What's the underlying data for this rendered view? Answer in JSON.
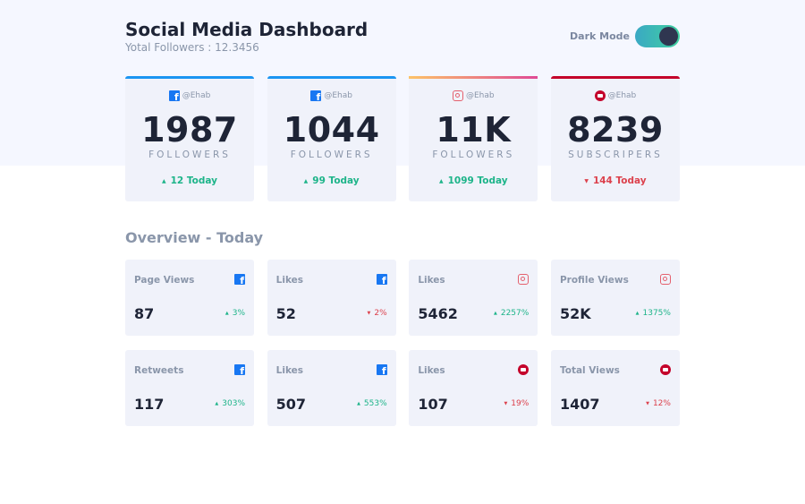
{
  "header": {
    "title": "Social Media Dashboard",
    "subtitle": "Yotal Followers : 12.3456",
    "dark_mode_label": "Dark Mode",
    "dark_mode_on": true
  },
  "cards": [
    {
      "platform": "facebook",
      "icon": "facebook-icon",
      "handle": "@Ehab",
      "count": "1987",
      "label": "FOLLOWERS",
      "delta": "12 Today",
      "trend": "up"
    },
    {
      "platform": "facebook",
      "icon": "facebook-icon",
      "handle": "@Ehab",
      "count": "1044",
      "label": "FOLLOWERS",
      "delta": "99 Today",
      "trend": "up"
    },
    {
      "platform": "instagram",
      "icon": "instagram-icon",
      "handle": "@Ehab",
      "count": "11K",
      "label": "FOLLOWERS",
      "delta": "1099 Today",
      "trend": "up"
    },
    {
      "platform": "youtube",
      "icon": "youtube-icon",
      "handle": "@Ehab",
      "count": "8239",
      "label": "SUBSCRIPERS",
      "delta": "144 Today",
      "trend": "down"
    }
  ],
  "overview": {
    "title": "Overview - Today",
    "items": [
      {
        "label": "Page Views",
        "icon": "facebook-icon",
        "value": "87",
        "delta": "3%",
        "trend": "up"
      },
      {
        "label": "Likes",
        "icon": "facebook-icon",
        "value": "52",
        "delta": "2%",
        "trend": "down"
      },
      {
        "label": "Likes",
        "icon": "instagram-icon",
        "value": "5462",
        "delta": "2257%",
        "trend": "up"
      },
      {
        "label": "Profile Views",
        "icon": "instagram-icon",
        "value": "52K",
        "delta": "1375%",
        "trend": "up"
      },
      {
        "label": "Retweets",
        "icon": "facebook-icon",
        "value": "117",
        "delta": "303%",
        "trend": "up"
      },
      {
        "label": "Likes",
        "icon": "facebook-icon",
        "value": "507",
        "delta": "553%",
        "trend": "up"
      },
      {
        "label": "Likes",
        "icon": "youtube-icon",
        "value": "107",
        "delta": "19%",
        "trend": "down"
      },
      {
        "label": "Total Views",
        "icon": "youtube-icon",
        "value": "1407",
        "delta": "12%",
        "trend": "down"
      }
    ]
  },
  "colors": {
    "facebook": "#1877f2",
    "instagram_start": "#fdc468",
    "instagram_end": "#df4996",
    "youtube": "#c4032b",
    "up": "#1db489",
    "down": "#dc414c"
  }
}
